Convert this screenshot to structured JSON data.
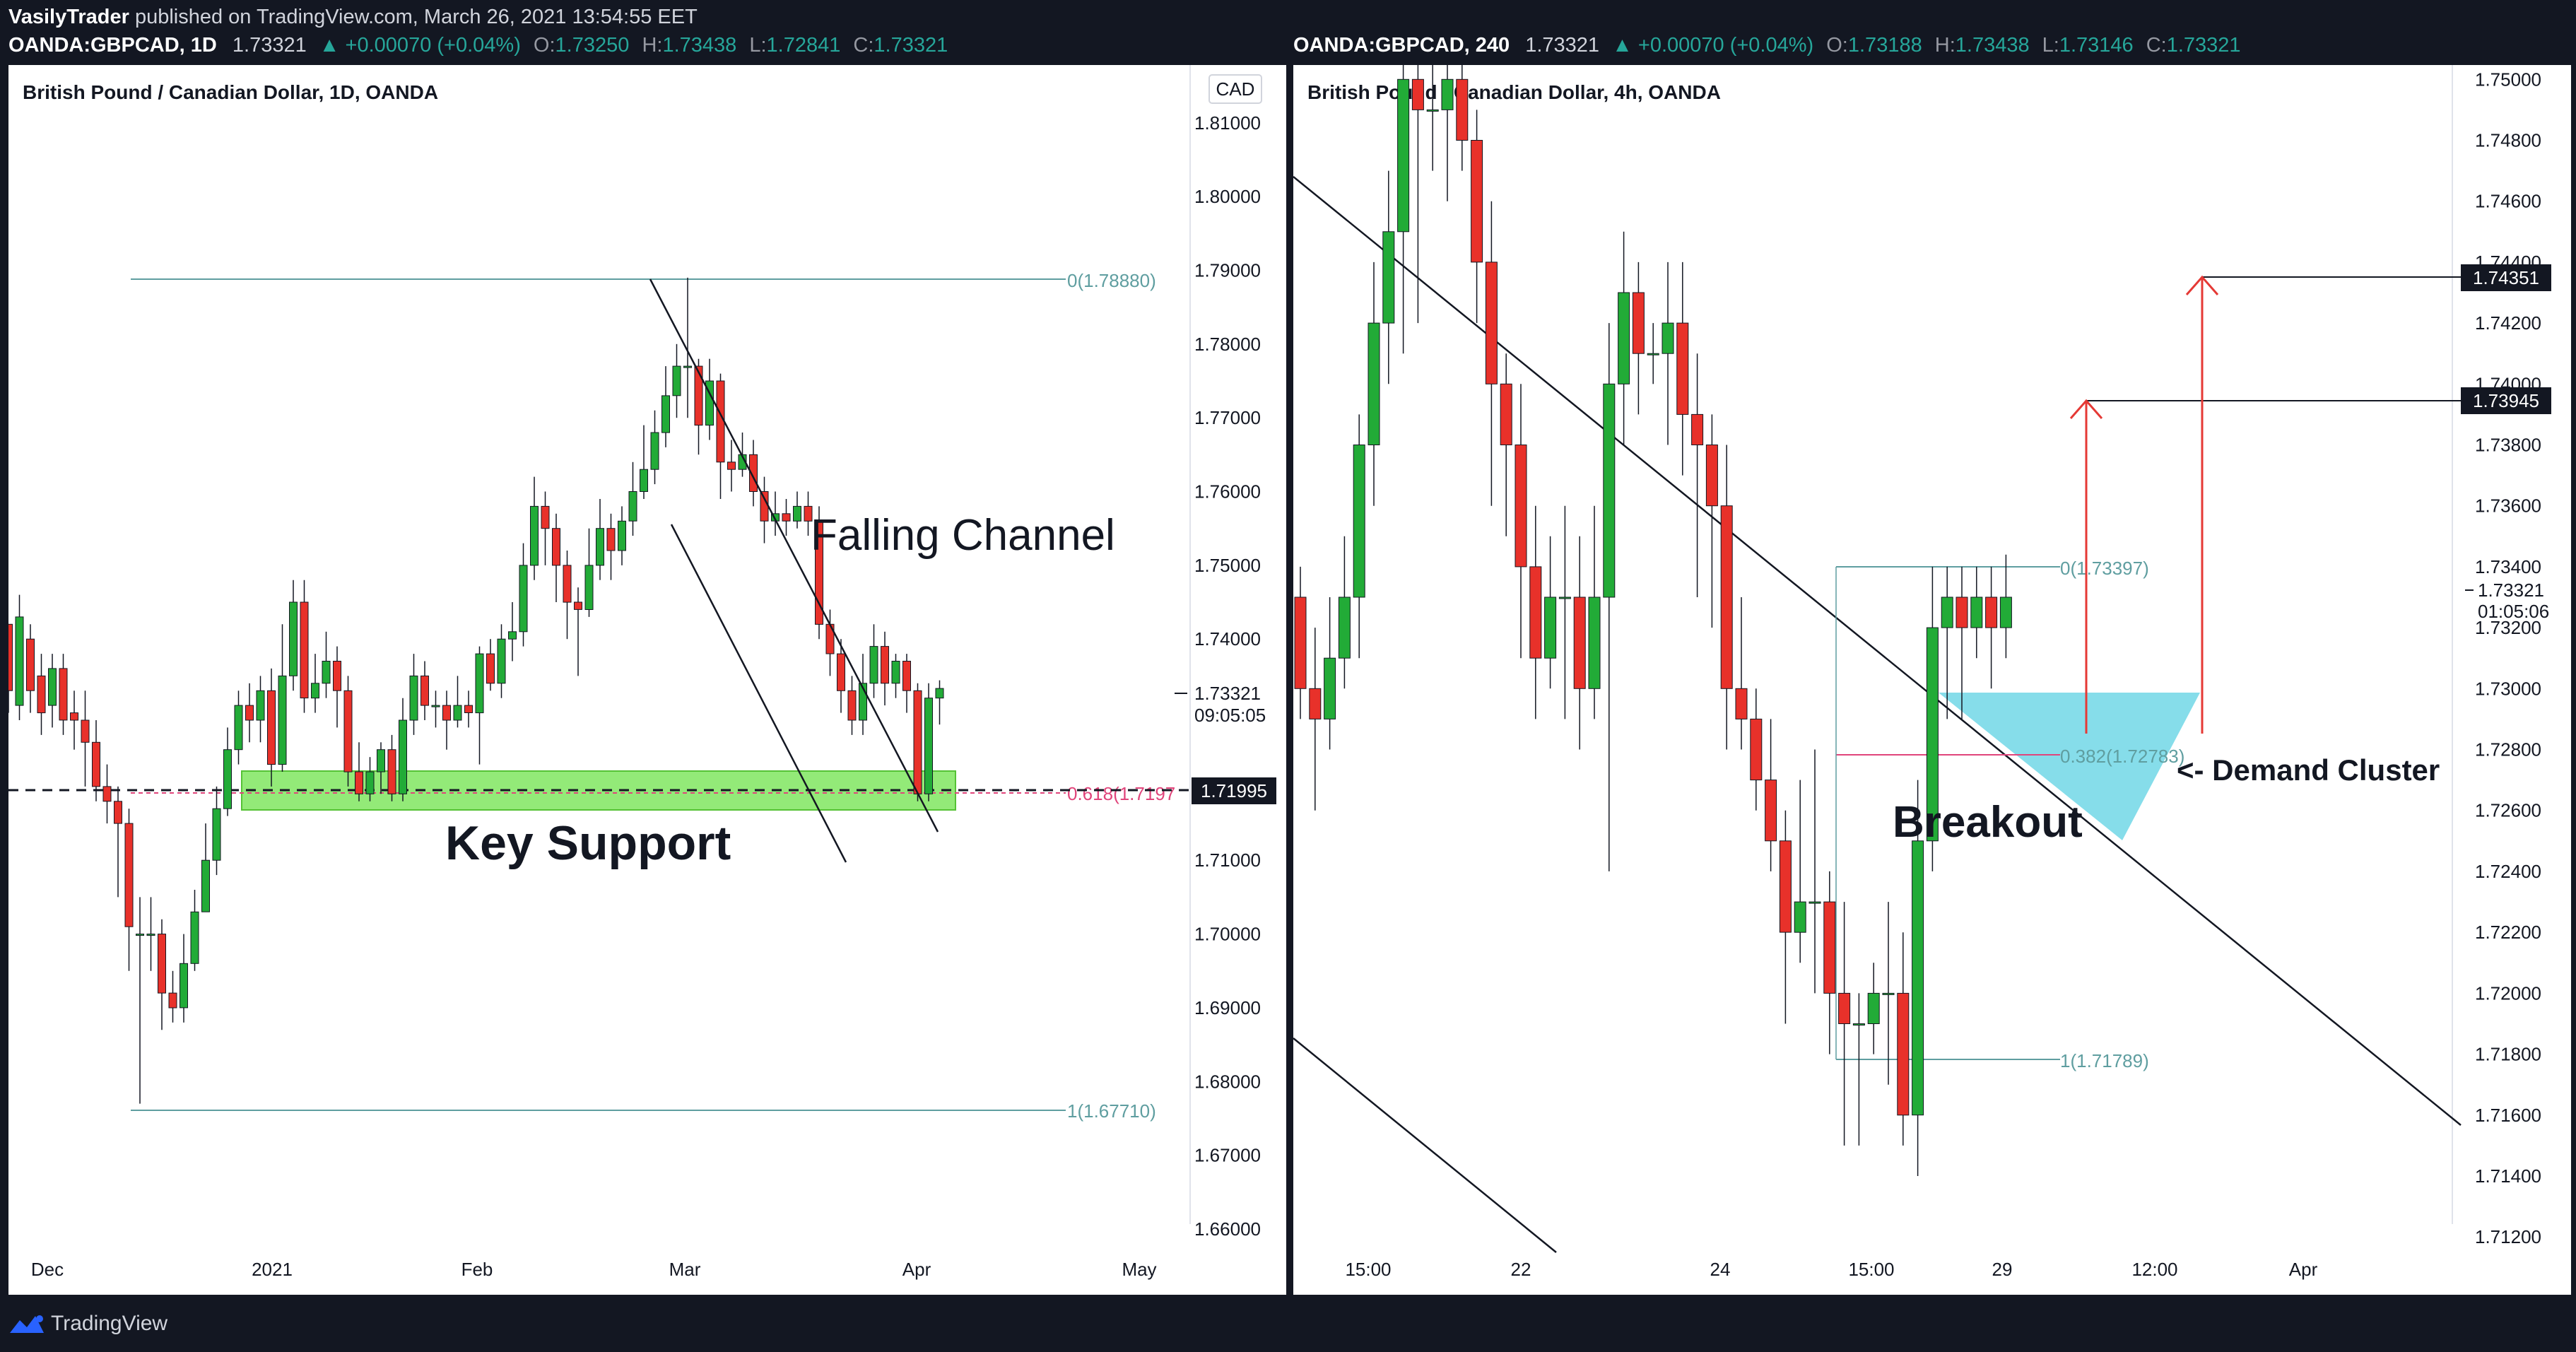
{
  "header": {
    "publisher": "VasilyTrader",
    "published_text": " published on TradingView.com, March 26, 2021 13:54:55 EET"
  },
  "footer": {
    "brand": "TradingView"
  },
  "colors": {
    "up": "#26a69a",
    "down": "#ef5350",
    "bull_candle": "#22ab37",
    "bear_candle": "#e8312a",
    "zone": "#80e660",
    "demand": "#7fdbe9",
    "fib_teal": "#5f9ea0",
    "fib_pink": "#e0457b",
    "arrow": "#e53935"
  },
  "left": {
    "symbol": "OANDA:GBPCAD, 1D",
    "last": "1.73321",
    "change": "▲ +0.00070 (+0.04%)",
    "ohlc": [
      {
        "l": "O:",
        "v": "1.73250"
      },
      {
        "l": "H:",
        "v": "1.73438"
      },
      {
        "l": "L:",
        "v": "1.72841"
      },
      {
        "l": "C:",
        "v": "1.73321"
      }
    ],
    "title": "British Pound / Canadian Dollar, 1D, OANDA",
    "currency": "CAD",
    "price_ticks": [
      "1.81000",
      "1.80000",
      "1.79000",
      "1.78000",
      "1.77000",
      "1.76000",
      "1.75000",
      "1.74000",
      "1.71000",
      "1.70000",
      "1.69000",
      "1.68000",
      "1.67000",
      "1.66000"
    ],
    "time_ticks": [
      "Dec",
      "2021",
      "Feb",
      "Mar",
      "Apr",
      "May"
    ],
    "last_price_label": "1.73321",
    "countdown": "09:05:05",
    "support_price_label": "1.71995",
    "fib0": "0(1.78880)",
    "fib618": "0.618(1.7197",
    "fib1": "1(1.67710)",
    "annotations": {
      "channel": "Falling Channel",
      "support": "Key Support"
    }
  },
  "right": {
    "symbol": "OANDA:GBPCAD, 240",
    "last": "1.73321",
    "change": "▲ +0.00070 (+0.04%)",
    "ohlc": [
      {
        "l": "O:",
        "v": "1.73188"
      },
      {
        "l": "H:",
        "v": "1.73438"
      },
      {
        "l": "L:",
        "v": "1.73146"
      },
      {
        "l": "C:",
        "v": "1.73321"
      }
    ],
    "title": "British Pound / Canadian Dollar, 4h, OANDA",
    "price_ticks": [
      "1.75000",
      "1.74800",
      "1.74600",
      "1.74400",
      "1.74200",
      "1.74000",
      "1.73800",
      "1.73600",
      "1.73400",
      "1.73200",
      "1.73000",
      "1.72800",
      "1.72600",
      "1.72400",
      "1.72200",
      "1.72000",
      "1.71800",
      "1.71600",
      "1.71400",
      "1.71200"
    ],
    "time_ticks": [
      "15:00",
      "22",
      "24",
      "15:00",
      "29",
      "12:00",
      "Apr"
    ],
    "target1_label": "1.74351",
    "target2_label": "1.73945",
    "last_price_label": "1.73321",
    "countdown": "01:05:06",
    "fib0": "0(1.73397)",
    "fib382": "0.382(1.72783)",
    "fib1": "1(1.71789)",
    "annotations": {
      "breakout": "Breakout",
      "demand": "<- Demand Cluster"
    }
  },
  "chart_data": [
    {
      "type": "candlestick",
      "title": "British Pound / Canadian Dollar, 1D, OANDA",
      "x_ticks": [
        "Dec",
        "2021",
        "Feb",
        "Mar",
        "Apr",
        "May"
      ],
      "ylim": [
        1.655,
        1.8185
      ],
      "grid": false,
      "candles": [
        [
          1.742,
          1.733,
          1.741,
          1.73
        ],
        [
          1.731,
          1.743,
          1.746,
          1.729
        ],
        [
          1.74,
          1.733,
          1.742,
          1.73
        ],
        [
          1.735,
          1.73,
          1.738,
          1.727
        ],
        [
          1.731,
          1.736,
          1.738,
          1.728
        ],
        [
          1.736,
          1.729,
          1.738,
          1.727
        ],
        [
          1.73,
          1.729,
          1.733,
          1.725
        ],
        [
          1.729,
          1.726,
          1.733,
          1.72
        ],
        [
          1.726,
          1.72,
          1.729,
          1.718
        ],
        [
          1.72,
          1.718,
          1.723,
          1.715
        ],
        [
          1.718,
          1.715,
          1.72,
          1.705
        ],
        [
          1.715,
          1.701,
          1.717,
          1.695
        ],
        [
          1.7,
          1.7,
          1.705,
          1.677
        ],
        [
          1.7,
          1.7,
          1.705,
          1.695
        ],
        [
          1.7,
          1.692,
          1.702,
          1.687
        ],
        [
          1.692,
          1.69,
          1.695,
          1.688
        ],
        [
          1.69,
          1.696,
          1.7,
          1.688
        ],
        [
          1.696,
          1.703,
          1.706,
          1.695
        ],
        [
          1.703,
          1.71,
          1.715,
          1.705
        ],
        [
          1.71,
          1.717,
          1.72,
          1.708
        ],
        [
          1.717,
          1.725,
          1.728,
          1.716
        ],
        [
          1.725,
          1.731,
          1.733,
          1.723
        ],
        [
          1.731,
          1.729,
          1.734,
          1.726
        ],
        [
          1.729,
          1.733,
          1.735,
          1.726
        ],
        [
          1.733,
          1.723,
          1.736,
          1.72
        ],
        [
          1.723,
          1.735,
          1.742,
          1.722
        ],
        [
          1.735,
          1.745,
          1.748,
          1.733
        ],
        [
          1.745,
          1.732,
          1.748,
          1.73
        ],
        [
          1.732,
          1.734,
          1.738,
          1.73
        ],
        [
          1.734,
          1.737,
          1.741,
          1.732
        ],
        [
          1.737,
          1.733,
          1.739,
          1.728
        ],
        [
          1.733,
          1.722,
          1.735,
          1.72
        ],
        [
          1.722,
          1.719,
          1.726,
          1.718
        ],
        [
          1.719,
          1.722,
          1.724,
          1.718
        ],
        [
          1.722,
          1.725,
          1.726,
          1.719
        ],
        [
          1.725,
          1.719,
          1.727,
          1.718
        ],
        [
          1.719,
          1.729,
          1.732,
          1.718
        ],
        [
          1.729,
          1.735,
          1.738,
          1.727
        ],
        [
          1.735,
          1.731,
          1.737,
          1.729
        ],
        [
          1.731,
          1.731,
          1.733,
          1.728
        ],
        [
          1.731,
          1.729,
          1.733,
          1.725
        ],
        [
          1.729,
          1.731,
          1.735,
          1.728
        ],
        [
          1.731,
          1.73,
          1.733,
          1.728
        ],
        [
          1.73,
          1.738,
          1.739,
          1.723
        ],
        [
          1.738,
          1.734,
          1.74,
          1.733
        ],
        [
          1.734,
          1.74,
          1.742,
          1.732
        ],
        [
          1.74,
          1.741,
          1.745,
          1.737
        ],
        [
          1.741,
          1.75,
          1.753,
          1.739
        ],
        [
          1.75,
          1.758,
          1.762,
          1.748
        ],
        [
          1.758,
          1.755,
          1.76,
          1.75
        ],
        [
          1.755,
          1.75,
          1.757,
          1.745
        ],
        [
          1.75,
          1.745,
          1.752,
          1.74
        ],
        [
          1.745,
          1.744,
          1.747,
          1.735
        ],
        [
          1.744,
          1.75,
          1.755,
          1.743
        ],
        [
          1.75,
          1.755,
          1.759,
          1.748
        ],
        [
          1.755,
          1.752,
          1.757,
          1.748
        ],
        [
          1.752,
          1.756,
          1.758,
          1.75
        ],
        [
          1.756,
          1.76,
          1.764,
          1.754
        ],
        [
          1.76,
          1.763,
          1.769,
          1.759
        ],
        [
          1.763,
          1.768,
          1.771,
          1.761
        ],
        [
          1.768,
          1.773,
          1.777,
          1.766
        ],
        [
          1.773,
          1.777,
          1.78,
          1.77
        ],
        [
          1.777,
          1.777,
          1.789,
          1.77
        ],
        [
          1.777,
          1.769,
          1.778,
          1.765
        ],
        [
          1.769,
          1.775,
          1.778,
          1.767
        ],
        [
          1.775,
          1.764,
          1.776,
          1.759
        ],
        [
          1.764,
          1.763,
          1.767,
          1.76
        ],
        [
          1.763,
          1.765,
          1.768,
          1.762
        ],
        [
          1.765,
          1.76,
          1.767,
          1.758
        ],
        [
          1.76,
          1.756,
          1.762,
          1.753
        ],
        [
          1.756,
          1.757,
          1.76,
          1.754
        ],
        [
          1.757,
          1.756,
          1.759,
          1.754
        ],
        [
          1.756,
          1.758,
          1.76,
          1.755
        ],
        [
          1.758,
          1.756,
          1.76,
          1.754
        ],
        [
          1.756,
          1.742,
          1.758,
          1.74
        ],
        [
          1.742,
          1.738,
          1.744,
          1.735
        ],
        [
          1.738,
          1.733,
          1.74,
          1.73
        ],
        [
          1.733,
          1.729,
          1.735,
          1.727
        ],
        [
          1.729,
          1.734,
          1.738,
          1.727
        ],
        [
          1.734,
          1.739,
          1.742,
          1.732
        ],
        [
          1.739,
          1.734,
          1.741,
          1.731
        ],
        [
          1.734,
          1.737,
          1.738,
          1.732
        ],
        [
          1.737,
          1.733,
          1.738,
          1.73
        ],
        [
          1.733,
          1.719,
          1.734,
          1.718
        ],
        [
          1.719,
          1.732,
          1.734,
          1.718
        ],
        [
          1.732,
          1.7333,
          1.7344,
          1.7284
        ]
      ],
      "levels": [
        {
          "label": "0(1.78880)",
          "value": 1.7888
        },
        {
          "label": "0.618(1.7197",
          "value": 1.7197
        },
        {
          "label": "1(1.67710)",
          "value": 1.6771
        }
      ],
      "support_zone": [
        1.718,
        1.723
      ],
      "last_price": 1.73321
    },
    {
      "type": "candlestick",
      "title": "British Pound / Canadian Dollar, 4h, OANDA",
      "x_ticks": [
        "15:00",
        "22",
        "24",
        "15:00",
        "29",
        "12:00",
        "Apr"
      ],
      "ylim": [
        1.711,
        1.7515
      ],
      "grid": false,
      "candles": [
        [
          1.733,
          1.73,
          1.734,
          1.729
        ],
        [
          1.73,
          1.729,
          1.732,
          1.726
        ],
        [
          1.729,
          1.731,
          1.733,
          1.728
        ],
        [
          1.731,
          1.733,
          1.735,
          1.73
        ],
        [
          1.733,
          1.738,
          1.739,
          1.731
        ],
        [
          1.738,
          1.742,
          1.744,
          1.736
        ],
        [
          1.742,
          1.745,
          1.747,
          1.74
        ],
        [
          1.745,
          1.75,
          1.751,
          1.741
        ],
        [
          1.75,
          1.749,
          1.758,
          1.742
        ],
        [
          1.749,
          1.749,
          1.753,
          1.747
        ],
        [
          1.749,
          1.75,
          1.752,
          1.746
        ],
        [
          1.75,
          1.748,
          1.752,
          1.747
        ],
        [
          1.748,
          1.744,
          1.749,
          1.742
        ],
        [
          1.744,
          1.74,
          1.746,
          1.736
        ],
        [
          1.74,
          1.738,
          1.741,
          1.735
        ],
        [
          1.738,
          1.734,
          1.74,
          1.731
        ],
        [
          1.734,
          1.731,
          1.736,
          1.729
        ],
        [
          1.731,
          1.733,
          1.735,
          1.73
        ],
        [
          1.733,
          1.733,
          1.736,
          1.729
        ],
        [
          1.733,
          1.73,
          1.735,
          1.728
        ],
        [
          1.73,
          1.733,
          1.736,
          1.729
        ],
        [
          1.733,
          1.74,
          1.742,
          1.724
        ],
        [
          1.74,
          1.743,
          1.745,
          1.738
        ],
        [
          1.743,
          1.741,
          1.744,
          1.739
        ],
        [
          1.741,
          1.741,
          1.742,
          1.74
        ],
        [
          1.741,
          1.742,
          1.744,
          1.738
        ],
        [
          1.742,
          1.739,
          1.744,
          1.737
        ],
        [
          1.739,
          1.738,
          1.741,
          1.733
        ],
        [
          1.738,
          1.736,
          1.739,
          1.732
        ],
        [
          1.736,
          1.73,
          1.738,
          1.728
        ],
        [
          1.73,
          1.729,
          1.733,
          1.728
        ],
        [
          1.729,
          1.727,
          1.73,
          1.726
        ],
        [
          1.727,
          1.725,
          1.729,
          1.724
        ],
        [
          1.725,
          1.722,
          1.726,
          1.719
        ],
        [
          1.722,
          1.723,
          1.727,
          1.721
        ],
        [
          1.723,
          1.723,
          1.728,
          1.72
        ],
        [
          1.723,
          1.72,
          1.724,
          1.718
        ],
        [
          1.72,
          1.719,
          1.723,
          1.715
        ],
        [
          1.719,
          1.719,
          1.72,
          1.715
        ],
        [
          1.719,
          1.72,
          1.721,
          1.718
        ],
        [
          1.72,
          1.72,
          1.723,
          1.717
        ],
        [
          1.72,
          1.716,
          1.722,
          1.715
        ],
        [
          1.716,
          1.725,
          1.727,
          1.714
        ],
        [
          1.725,
          1.732,
          1.734,
          1.724
        ],
        [
          1.732,
          1.733,
          1.734,
          1.729
        ],
        [
          1.733,
          1.732,
          1.734,
          1.729
        ],
        [
          1.732,
          1.733,
          1.734,
          1.731
        ],
        [
          1.733,
          1.732,
          1.734,
          1.73
        ],
        [
          1.732,
          1.733,
          1.7344,
          1.731
        ]
      ],
      "levels": [
        {
          "label": "0(1.73397)",
          "value": 1.73397
        },
        {
          "label": "0.382(1.72783)",
          "value": 1.72783
        },
        {
          "label": "1(1.71789)",
          "value": 1.71789
        }
      ],
      "targets": [
        1.74351,
        1.73945
      ],
      "last_price": 1.73321
    }
  ]
}
